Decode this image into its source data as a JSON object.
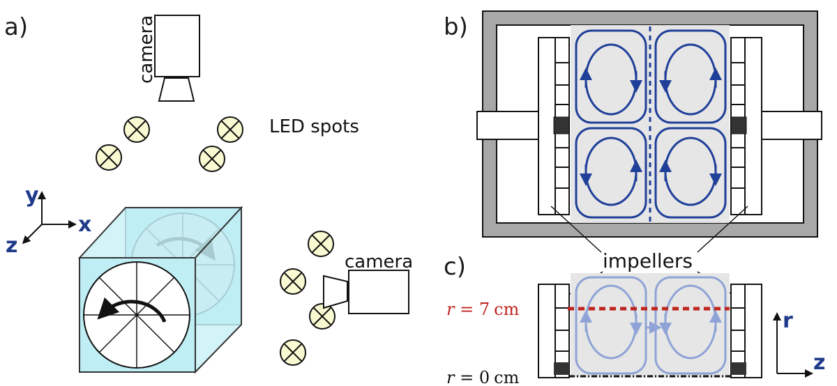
{
  "panels": {
    "a": {
      "label": "a)"
    },
    "b": {
      "label": "b)"
    },
    "c": {
      "label": "c)"
    }
  },
  "a": {
    "camera_top_label": "camera",
    "led_label": "LED spots",
    "camera_side_label": "camera",
    "axis_y": "y",
    "axis_x": "x",
    "axis_z": "z"
  },
  "b": {
    "impellers_label": "impellers"
  },
  "c": {
    "r7_var": "r",
    "r7_eq": " = 7",
    "r7_unit": "cm",
    "r0_var": "r",
    "r0_eq": " = 0",
    "r0_unit": "cm",
    "axis_r": "r",
    "axis_z": "z"
  },
  "colors": {
    "flow_blue": "#1f3f99",
    "flow_light": "#8fa3d6",
    "red_line": "#c0241f",
    "cube_fill": "#bfeef5",
    "led_fill": "#fafad2",
    "gray_frame": "#a8a8a8",
    "region_gray": "#e6e6e6"
  }
}
